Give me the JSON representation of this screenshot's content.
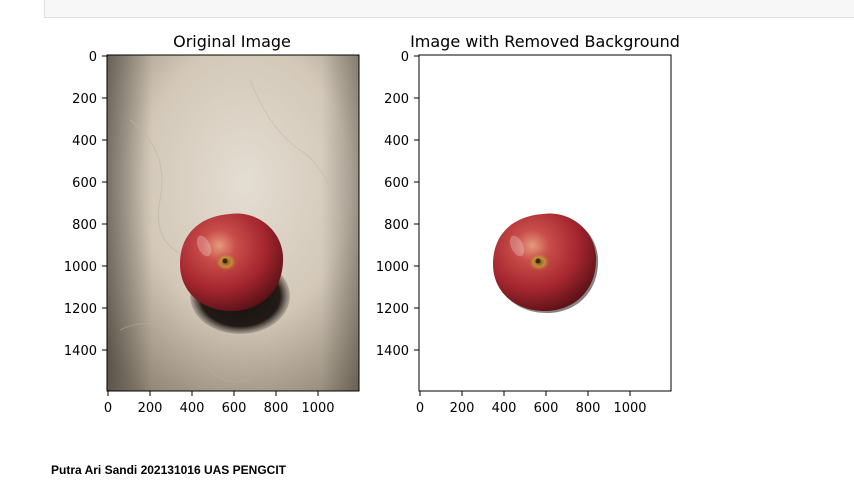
{
  "notebook": {
    "caption": "Putra Ari Sandi 202131016 UAS PENGCIT"
  },
  "figure": {
    "panels": [
      {
        "title": "Original Image",
        "x_ticks": [
          "0",
          "200",
          "400",
          "600",
          "800",
          "1000"
        ],
        "y_ticks": [
          "0",
          "200",
          "400",
          "600",
          "800",
          "1000",
          "1200",
          "1400"
        ]
      },
      {
        "title": "Image with Removed Background",
        "x_ticks": [
          "0",
          "200",
          "400",
          "600",
          "800",
          "1000"
        ],
        "y_ticks": [
          "0",
          "200",
          "400",
          "600",
          "800",
          "1000",
          "1200",
          "1400"
        ]
      }
    ]
  },
  "colors": {
    "wall": "#d6cbbd",
    "apple_red": "#b8323a",
    "apple_dark": "#5e1116",
    "shadow": "#1c1614"
  }
}
